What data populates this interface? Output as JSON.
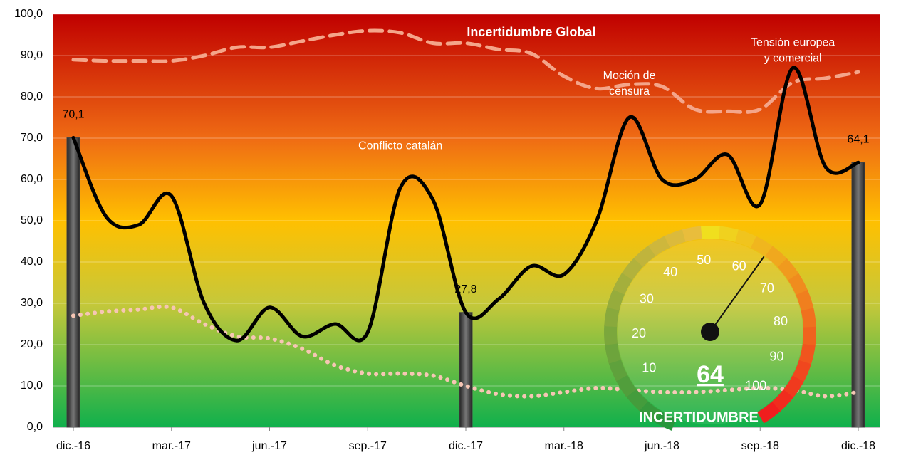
{
  "chart_data": {
    "type": "line",
    "categories": [
      "dic.-16",
      null,
      null,
      "mar.-17",
      null,
      null,
      "jun.-17",
      null,
      null,
      "sep.-17",
      null,
      null,
      "dic.-17",
      null,
      null,
      "mar.-18",
      null,
      null,
      "jun.-18",
      null,
      null,
      "sep.-18",
      null,
      null,
      "dic.-18"
    ],
    "series": [
      {
        "color": "#000000",
        "style": "solid",
        "values": [
          70.1,
          51,
          49,
          56,
          30,
          21,
          29,
          22,
          25,
          23,
          58,
          55,
          27.8,
          31,
          39,
          37,
          50,
          75,
          60,
          60,
          66,
          54,
          87,
          63,
          64.1
        ]
      },
      {
        "color": "#f4a58a",
        "style": "dashed",
        "values": [
          89,
          88.7,
          88.7,
          88.7,
          90,
          92,
          92,
          93.5,
          95,
          96,
          95.5,
          93,
          93,
          91.5,
          90.5,
          85,
          82,
          83,
          82.5,
          77,
          76.5,
          77,
          83.5,
          84.5,
          86
        ]
      },
      {
        "color": "#f6c6b4",
        "style": "dotted",
        "values": [
          27,
          28,
          28.5,
          29,
          25,
          22,
          21.5,
          19,
          15,
          13,
          13,
          12.5,
          10,
          8,
          7.5,
          8.5,
          9.5,
          9,
          8.5,
          8.5,
          9,
          9.5,
          9,
          7.5,
          8.5
        ]
      },
      {
        "type": "bar",
        "color": "#444444",
        "values": [
          70.1,
          null,
          null,
          null,
          null,
          null,
          null,
          null,
          null,
          null,
          null,
          null,
          27.8,
          null,
          null,
          null,
          null,
          null,
          null,
          null,
          null,
          null,
          null,
          null,
          64.1
        ],
        "value_labels": [
          "70,1",
          null,
          null,
          null,
          null,
          null,
          null,
          null,
          null,
          null,
          null,
          null,
          "27,8",
          null,
          null,
          null,
          null,
          null,
          null,
          null,
          null,
          null,
          null,
          null,
          "64,1"
        ]
      }
    ],
    "ylim": [
      0,
      100
    ],
    "yticks": [
      {
        "value": 0,
        "label": "0,0"
      },
      {
        "value": 10,
        "label": "10,0"
      },
      {
        "value": 20,
        "label": "20,0"
      },
      {
        "value": 30,
        "label": "30,0"
      },
      {
        "value": 40,
        "label": "40,0"
      },
      {
        "value": 50,
        "label": "50,0"
      },
      {
        "value": 60,
        "label": "60,0"
      },
      {
        "value": 70,
        "label": "70,0"
      },
      {
        "value": 80,
        "label": "80,0"
      },
      {
        "value": 90,
        "label": "90,0"
      },
      {
        "value": 100,
        "label": "100,0"
      }
    ],
    "annotations": [
      {
        "text": "Incertidumbre Global",
        "index": 14,
        "y": 95.5
      },
      {
        "text": "Conflicto catalán",
        "index": 10,
        "y": 68
      },
      {
        "text": "Moción de censura",
        "index": 17,
        "y": 85
      },
      {
        "text": "Tensión europea y comercial",
        "index": 22,
        "y": 93
      }
    ],
    "gauge": {
      "value": 64,
      "label": "INCERTIDUMBRE",
      "ticks": [
        10,
        20,
        30,
        40,
        50,
        60,
        70,
        80,
        90,
        100
      ]
    }
  }
}
